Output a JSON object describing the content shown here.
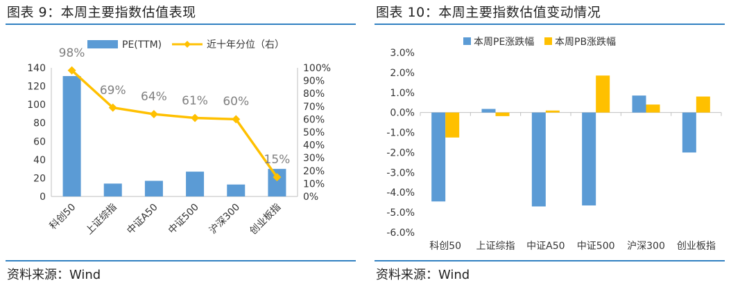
{
  "left": {
    "figure_title": "图表 9：本周主要指数估值表现",
    "source": "资料来源：Wind"
  },
  "right": {
    "figure_title": "图表 10：本周主要指数估值变动情况",
    "source": "资料来源：Wind"
  },
  "colors": {
    "blue": "#5b9bd5",
    "gold": "#ffc000",
    "rule": "#2f7fc1"
  },
  "chart_data": [
    {
      "type": "bar",
      "combo": "bar+line",
      "categories": [
        "科创50",
        "上证综指",
        "中证A50",
        "中证500",
        "沪深300",
        "创业板指"
      ],
      "series": [
        {
          "name": "PE(TTM)",
          "type": "bar",
          "axis": "left",
          "values": [
            131,
            14,
            17,
            27,
            13,
            30
          ]
        },
        {
          "name": "近十年分位（右）",
          "type": "line",
          "axis": "right",
          "values": [
            98,
            69,
            64,
            61,
            60,
            15
          ],
          "labels": [
            "98%",
            "69%",
            "64%",
            "61%",
            "60%",
            "15%"
          ]
        }
      ],
      "y_left": {
        "lim": [
          0,
          140
        ],
        "ticks": [
          "0",
          "20",
          "40",
          "60",
          "80",
          "100",
          "120",
          "140"
        ]
      },
      "y_right": {
        "lim": [
          0,
          100
        ],
        "ticks": [
          "0%",
          "10%",
          "20%",
          "30%",
          "40%",
          "50%",
          "60%",
          "70%",
          "80%",
          "90%",
          "100%"
        ]
      },
      "legend_position": "top"
    },
    {
      "type": "bar",
      "categories": [
        "科创50",
        "上证综指",
        "中证A50",
        "中证500",
        "沪深300",
        "创业板指"
      ],
      "series": [
        {
          "name": "本周PE涨跌幅",
          "values": [
            -4.45,
            0.18,
            -4.7,
            -4.65,
            0.85,
            -2.0
          ]
        },
        {
          "name": "本周PB涨跌幅",
          "values": [
            -1.25,
            -0.18,
            0.1,
            1.85,
            0.4,
            0.8
          ]
        }
      ],
      "y": {
        "lim": [
          -6,
          3
        ],
        "ticks": [
          "-6.0%",
          "-5.0%",
          "-4.0%",
          "-3.0%",
          "-2.0%",
          "-1.0%",
          "0.0%",
          "1.0%",
          "2.0%",
          "3.0%"
        ]
      },
      "legend_position": "top"
    }
  ]
}
